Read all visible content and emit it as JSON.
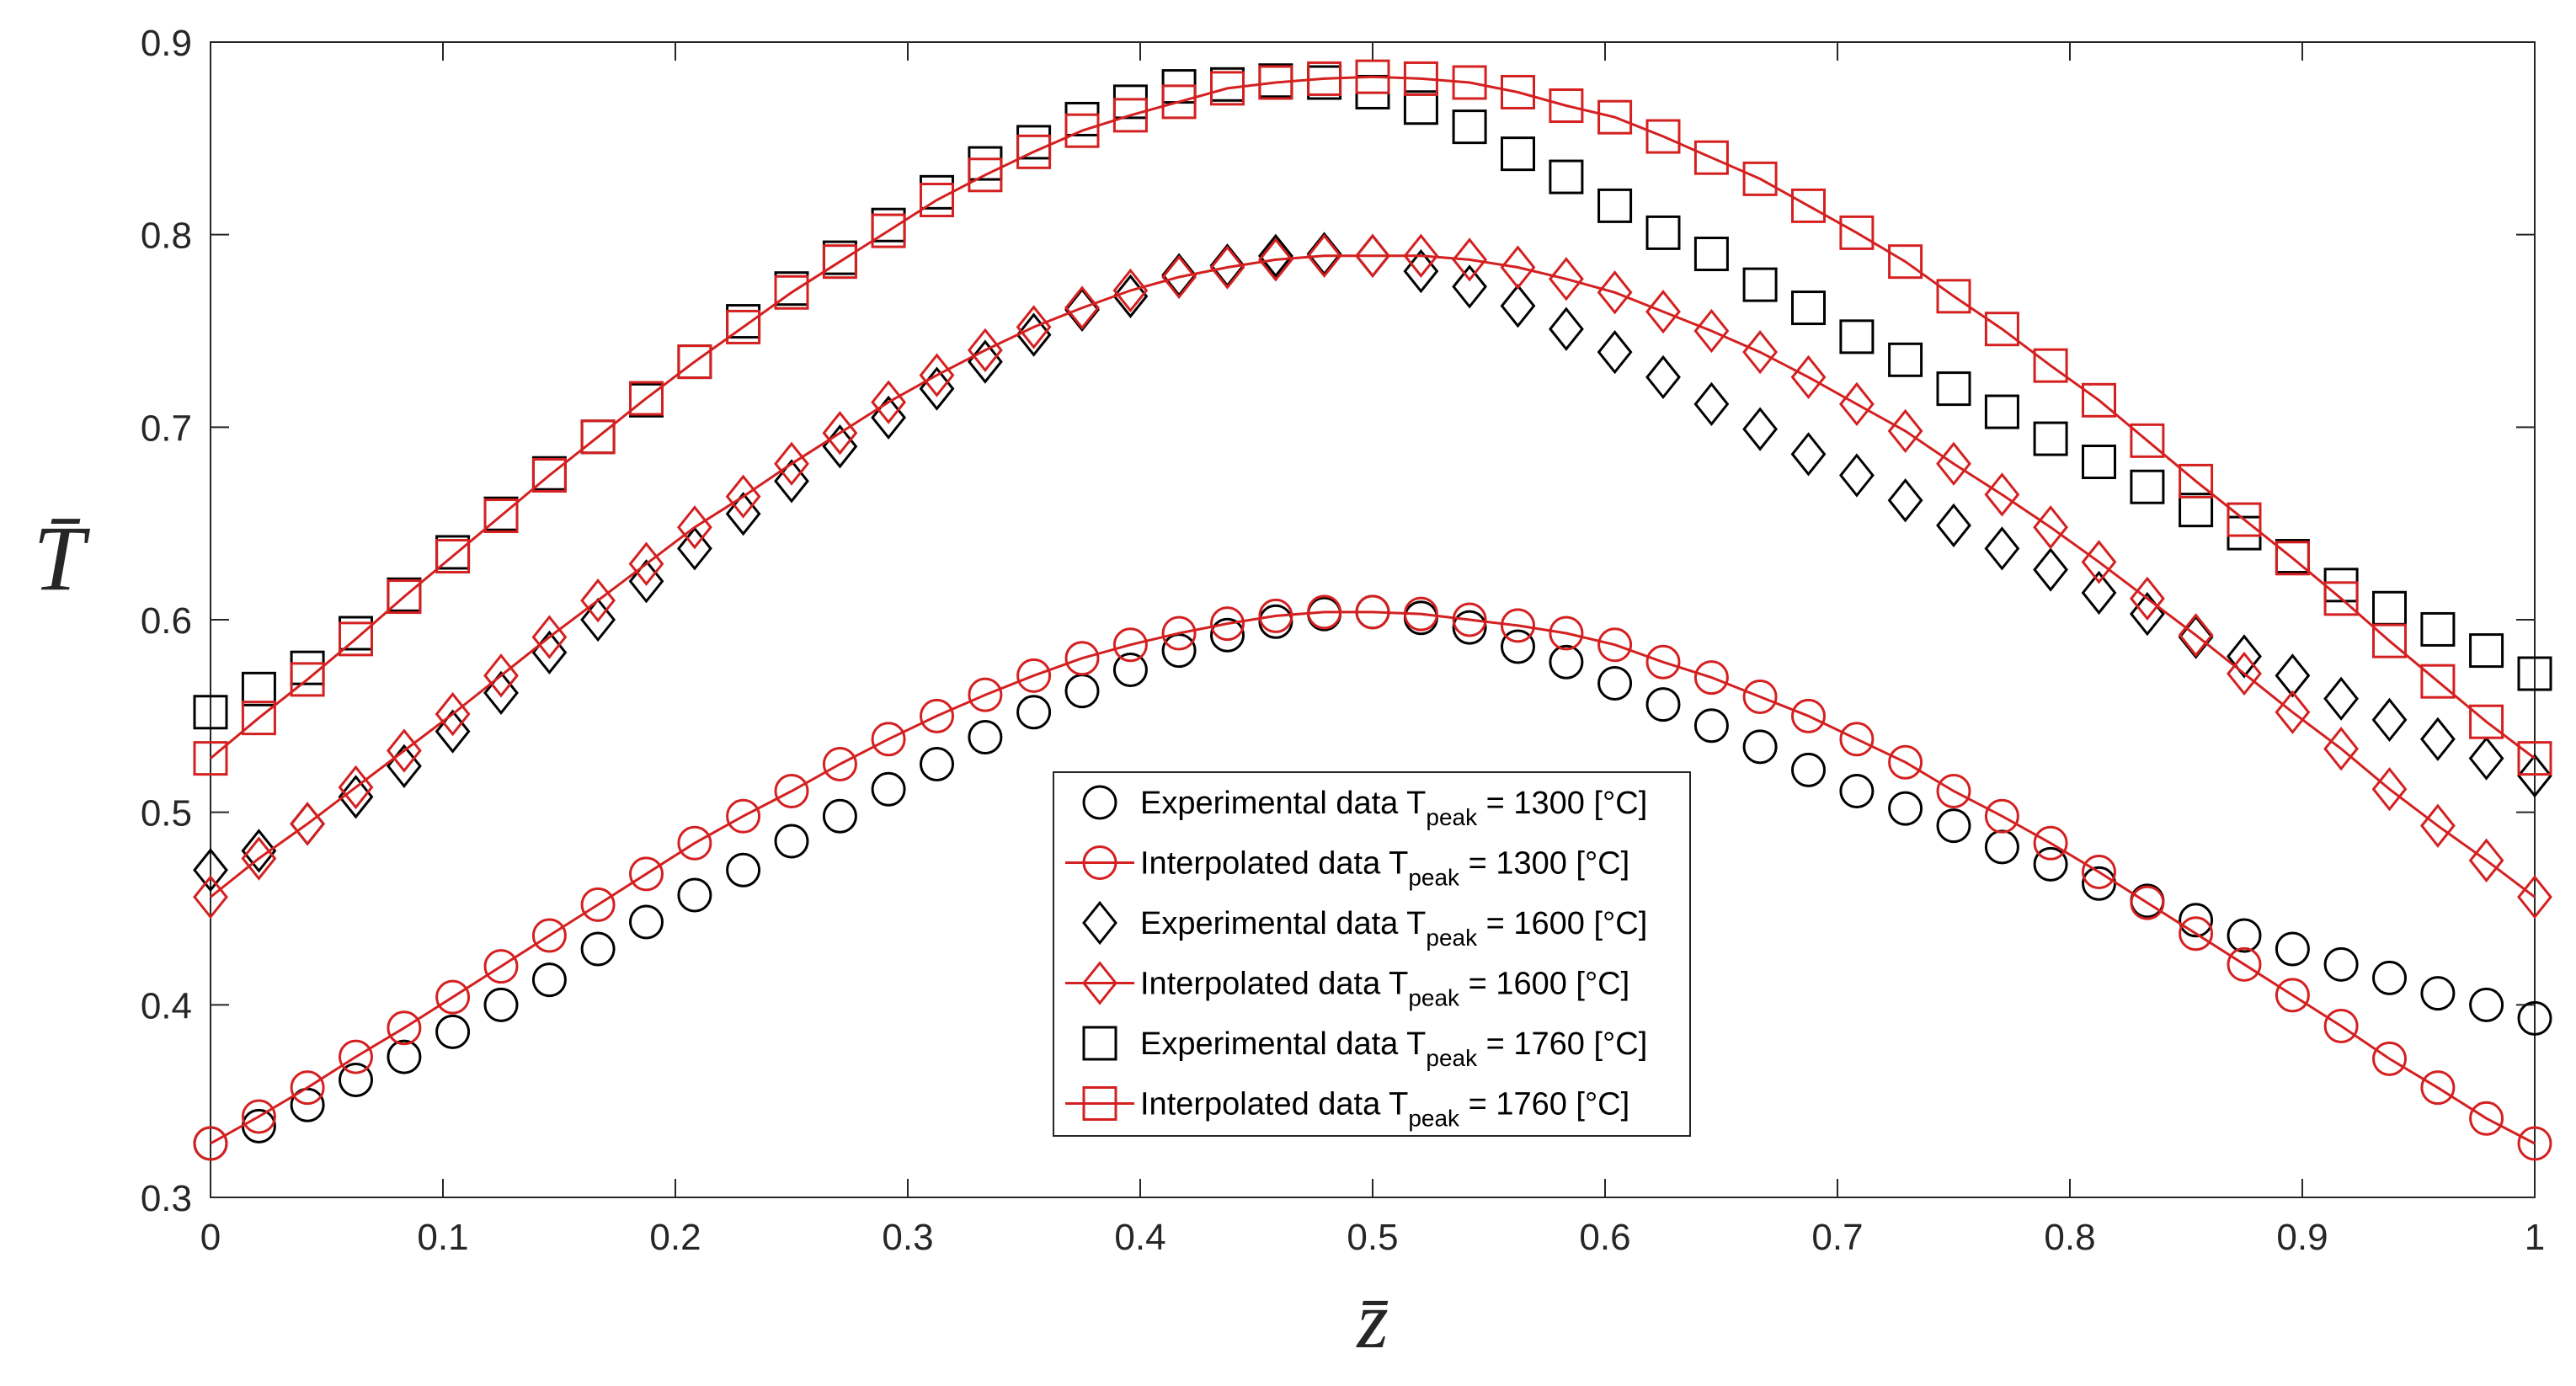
{
  "colors": {
    "experimental": "#000000",
    "interpolated": "#d42020",
    "axis": "#262626",
    "frame": "#262626"
  },
  "chart_data": {
    "type": "line",
    "xlabel": "z̄",
    "ylabel": "T̄",
    "xlim": [
      0,
      1
    ],
    "ylim": [
      0.3,
      0.9
    ],
    "grid": false,
    "legend_position": "bottom-center",
    "xticks": [
      0,
      0.1,
      0.2,
      0.3,
      0.4,
      0.5,
      0.6,
      0.7,
      0.8,
      0.9,
      1
    ],
    "xtick_labels": [
      "0",
      "0.1",
      "0.2",
      "0.3",
      "0.4",
      "0.5",
      "0.6",
      "0.7",
      "0.8",
      "0.9",
      "1"
    ],
    "yticks": [
      0.3,
      0.4,
      0.5,
      0.6,
      0.7,
      0.8,
      0.9
    ],
    "ytick_labels": [
      "0.3",
      "0.4",
      "0.5",
      "0.6",
      "0.7",
      "0.8",
      "0.9"
    ],
    "x": [
      0,
      0.0208,
      0.0417,
      0.0625,
      0.0833,
      0.1042,
      0.125,
      0.1458,
      0.1667,
      0.1875,
      0.2083,
      0.2292,
      0.25,
      0.2708,
      0.2917,
      0.3125,
      0.3333,
      0.3542,
      0.375,
      0.3958,
      0.4167,
      0.4375,
      0.4583,
      0.4792,
      0.5,
      0.5208,
      0.5417,
      0.5625,
      0.5833,
      0.6042,
      0.625,
      0.6458,
      0.6667,
      0.6875,
      0.7083,
      0.7292,
      0.75,
      0.7708,
      0.7917,
      0.8125,
      0.8333,
      0.8542,
      0.875,
      0.8958,
      0.9167,
      0.9375,
      0.9583,
      0.9792,
      1
    ],
    "series": [
      {
        "name": "Experimental data T_peak = 1300 [°C]",
        "label_main": "Experimental data T",
        "label_sub": "peak",
        "label_tail": " = 1300 [°C]",
        "marker": "circle",
        "line": false,
        "color": "black",
        "values": [
          0.328,
          0.337,
          0.348,
          0.361,
          0.373,
          0.386,
          0.4,
          0.413,
          0.429,
          0.443,
          0.457,
          0.47,
          0.485,
          0.498,
          0.512,
          0.525,
          0.539,
          0.552,
          0.563,
          0.574,
          0.584,
          0.592,
          0.599,
          0.603,
          0.604,
          0.601,
          0.596,
          0.586,
          0.578,
          0.567,
          0.556,
          0.545,
          0.534,
          0.522,
          0.511,
          0.502,
          0.493,
          0.482,
          0.473,
          0.463,
          0.454,
          0.444,
          0.436,
          0.429,
          0.421,
          0.414,
          0.406,
          0.4,
          0.393
        ]
      },
      {
        "name": "Interpolated data T_peak = 1300 [°C]",
        "label_main": "Interpolated data T",
        "label_sub": "peak",
        "label_tail": " = 1300 [°C]",
        "marker": "circle",
        "line": true,
        "color": "red",
        "values": [
          0.328,
          0.342,
          0.357,
          0.373,
          0.388,
          0.404,
          0.42,
          0.436,
          0.452,
          0.468,
          0.484,
          0.498,
          0.511,
          0.525,
          0.538,
          0.55,
          0.561,
          0.571,
          0.58,
          0.587,
          0.593,
          0.598,
          0.602,
          0.604,
          0.604,
          0.603,
          0.6,
          0.597,
          0.593,
          0.587,
          0.578,
          0.57,
          0.56,
          0.55,
          0.538,
          0.526,
          0.511,
          0.498,
          0.484,
          0.469,
          0.453,
          0.437,
          0.421,
          0.405,
          0.389,
          0.372,
          0.357,
          0.341,
          0.328
        ]
      },
      {
        "name": "Experimental data T_peak = 1600 [°C]",
        "label_main": "Experimental data T",
        "label_sub": "peak",
        "label_tail": " = 1600 [°C]",
        "marker": "diamond",
        "line": false,
        "color": "black",
        "values": [
          0.47,
          0.48,
          0.494,
          0.508,
          0.524,
          0.542,
          0.562,
          0.583,
          0.6,
          0.62,
          0.637,
          0.655,
          0.672,
          0.69,
          0.705,
          0.72,
          0.734,
          0.748,
          0.761,
          0.768,
          0.779,
          0.784,
          0.789,
          0.79,
          0.789,
          0.781,
          0.773,
          0.763,
          0.751,
          0.739,
          0.726,
          0.712,
          0.699,
          0.686,
          0.675,
          0.662,
          0.649,
          0.637,
          0.626,
          0.614,
          0.603,
          0.591,
          0.581,
          0.571,
          0.559,
          0.548,
          0.538,
          0.528,
          0.519
        ]
      },
      {
        "name": "Interpolated data T_peak = 1600 [°C]",
        "label_main": "Interpolated data T",
        "label_sub": "peak",
        "label_tail": " = 1600 [°C]",
        "marker": "diamond",
        "line": true,
        "color": "red",
        "values": [
          0.456,
          0.476,
          0.494,
          0.513,
          0.532,
          0.551,
          0.571,
          0.591,
          0.61,
          0.629,
          0.648,
          0.664,
          0.681,
          0.697,
          0.713,
          0.727,
          0.74,
          0.752,
          0.762,
          0.771,
          0.778,
          0.783,
          0.787,
          0.789,
          0.789,
          0.789,
          0.787,
          0.783,
          0.777,
          0.77,
          0.76,
          0.75,
          0.739,
          0.726,
          0.712,
          0.698,
          0.681,
          0.665,
          0.648,
          0.63,
          0.611,
          0.592,
          0.572,
          0.552,
          0.533,
          0.512,
          0.493,
          0.475,
          0.456
        ]
      },
      {
        "name": "Experimental data T_peak = 1760 [°C]",
        "label_main": "Experimental data T",
        "label_sub": "peak",
        "label_tail": " = 1760 [°C]",
        "marker": "square",
        "line": false,
        "color": "black",
        "values": [
          0.552,
          0.564,
          0.575,
          0.593,
          0.613,
          0.635,
          0.655,
          0.676,
          0.695,
          0.714,
          0.734,
          0.755,
          0.772,
          0.788,
          0.805,
          0.822,
          0.837,
          0.848,
          0.86,
          0.869,
          0.877,
          0.878,
          0.88,
          0.879,
          0.874,
          0.866,
          0.856,
          0.842,
          0.83,
          0.815,
          0.801,
          0.79,
          0.774,
          0.762,
          0.747,
          0.735,
          0.72,
          0.708,
          0.694,
          0.682,
          0.669,
          0.657,
          0.645,
          0.633,
          0.618,
          0.606,
          0.595,
          0.584,
          0.572
        ]
      },
      {
        "name": "Interpolated data T_peak = 1760 [°C]",
        "label_main": "Interpolated data T",
        "label_sub": "peak",
        "label_tail": " = 1760 [°C]",
        "marker": "square",
        "line": true,
        "color": "red",
        "values": [
          0.528,
          0.549,
          0.569,
          0.59,
          0.612,
          0.633,
          0.654,
          0.675,
          0.695,
          0.715,
          0.734,
          0.752,
          0.77,
          0.786,
          0.802,
          0.818,
          0.831,
          0.843,
          0.854,
          0.862,
          0.869,
          0.876,
          0.879,
          0.881,
          0.882,
          0.881,
          0.879,
          0.874,
          0.867,
          0.861,
          0.851,
          0.84,
          0.829,
          0.815,
          0.801,
          0.786,
          0.768,
          0.751,
          0.732,
          0.714,
          0.693,
          0.672,
          0.652,
          0.632,
          0.611,
          0.589,
          0.568,
          0.547,
          0.528
        ]
      }
    ]
  }
}
